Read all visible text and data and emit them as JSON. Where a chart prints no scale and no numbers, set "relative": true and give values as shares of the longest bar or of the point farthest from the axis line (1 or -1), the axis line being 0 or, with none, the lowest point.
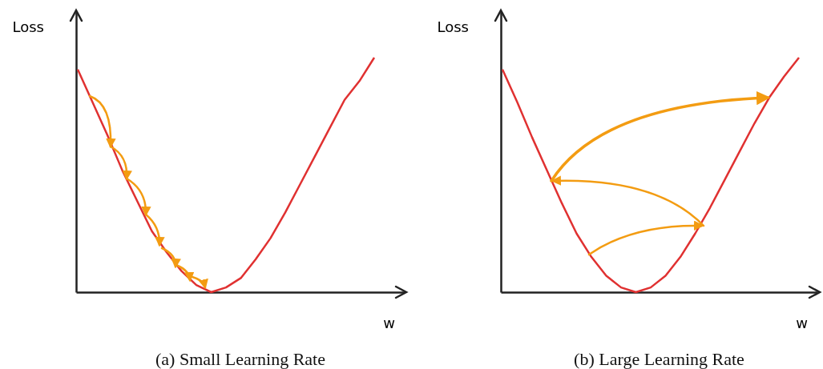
{
  "chart_data": [
    {
      "type": "line",
      "title": "(a) Small Learning Rate",
      "xlabel": "w",
      "ylabel": "Loss",
      "relative": true,
      "categories": [
        null,
        null,
        null,
        null,
        null,
        null,
        null,
        null,
        null,
        null,
        null,
        null,
        null,
        null,
        null,
        null,
        null,
        null,
        null,
        null,
        null
      ],
      "series": [
        {
          "color": "#e03131",
          "values": [
            0.95,
            0.81,
            0.67,
            0.52,
            0.39,
            0.26,
            0.17,
            0.09,
            0.03,
            0.0,
            0.02,
            0.06,
            0.14,
            0.23,
            0.34,
            0.46,
            0.58,
            0.7,
            0.82,
            0.9,
            1.0
          ]
        }
      ]
    },
    {
      "type": "line",
      "title": "(b) Large Learning Rate",
      "xlabel": "w",
      "ylabel": "Loss",
      "relative": true,
      "categories": [
        null,
        null,
        null,
        null,
        null,
        null,
        null,
        null,
        null,
        null,
        null,
        null,
        null,
        null,
        null,
        null,
        null,
        null,
        null,
        null,
        null
      ],
      "series": [
        {
          "color": "#e03131",
          "values": [
            0.95,
            0.81,
            0.66,
            0.52,
            0.38,
            0.25,
            0.15,
            0.07,
            0.02,
            0.0,
            0.02,
            0.07,
            0.15,
            0.25,
            0.36,
            0.48,
            0.6,
            0.72,
            0.83,
            0.92,
            1.0
          ]
        }
      ]
    }
  ]
}
